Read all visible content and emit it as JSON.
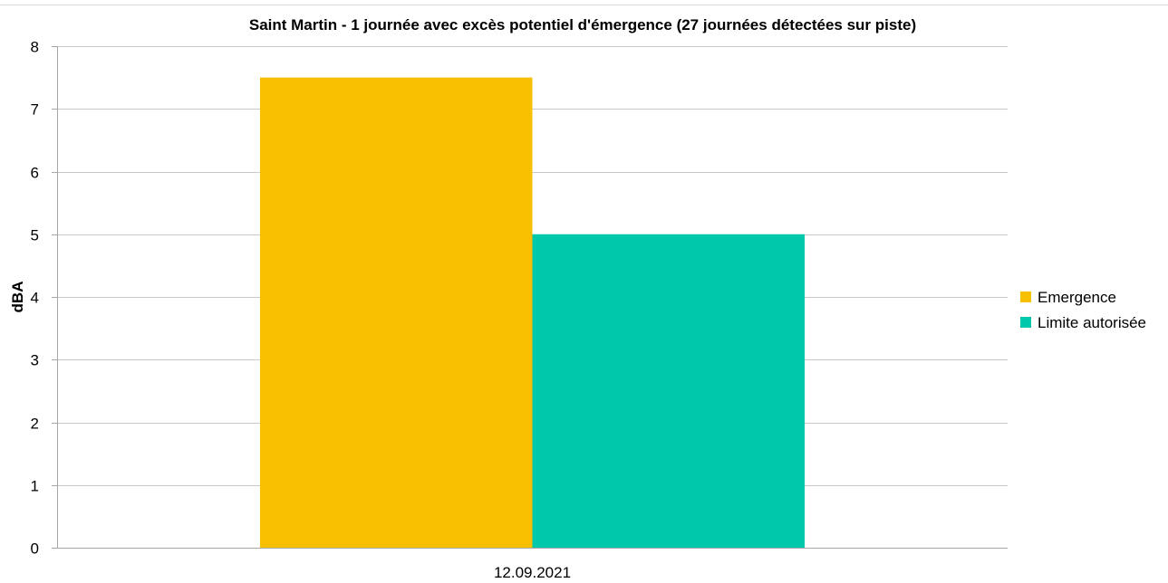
{
  "chart_data": {
    "type": "bar",
    "title": "Saint Martin - 1 journée avec excès potentiel d'émergence (27 journées détectées sur piste)",
    "xlabel": "",
    "ylabel": "dBA",
    "categories": [
      "12.09.2021"
    ],
    "series": [
      {
        "name": "Emergence",
        "values": [
          7.5
        ],
        "color": "#F8BE00"
      },
      {
        "name": "Limite autorisée",
        "values": [
          5
        ],
        "color": "#00C8AA"
      }
    ],
    "ylim": [
      0,
      8
    ],
    "yticks": [
      "0",
      "1",
      "2",
      "3",
      "4",
      "5",
      "6",
      "7",
      "8"
    ],
    "grid": true,
    "legend_position": "right"
  }
}
